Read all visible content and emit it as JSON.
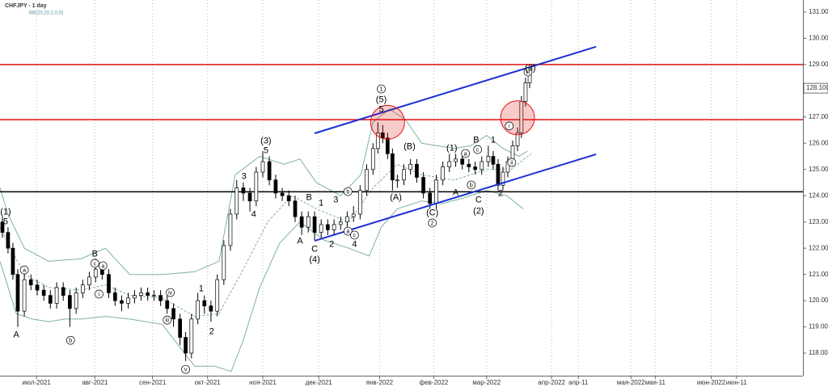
{
  "chart_data": {
    "type": "candlestick",
    "title": "CHFJPY - 1 day",
    "subtitle": "BB(20,20,2,0,0)",
    "xlim": [
      0,
      330
    ],
    "ylim": [
      117.14,
      131.46
    ],
    "grid": true,
    "xticks": [
      {
        "value": 15,
        "label": "июл-2021"
      },
      {
        "value": 39,
        "label": "авг-2021"
      },
      {
        "value": 62.7,
        "label": "сен-2021"
      },
      {
        "value": 85.3,
        "label": "окт-2021"
      },
      {
        "value": 108,
        "label": "ноя-2021"
      },
      {
        "value": 131,
        "label": "дек-2021"
      },
      {
        "value": 156,
        "label": "янв-2022"
      },
      {
        "value": 178.3,
        "label": "фев-2022"
      },
      {
        "value": 200,
        "label": "мар-2022"
      },
      {
        "value": 226.7,
        "label": "апр-2022"
      },
      {
        "value": 237.7,
        "label": "апр-11"
      },
      {
        "value": 259.3,
        "label": "мая-2022"
      },
      {
        "value": 269.3,
        "label": "мая-11"
      },
      {
        "value": 292.3,
        "label": "июн-2022"
      },
      {
        "value": 302.7,
        "label": "июн-11"
      }
    ],
    "yticks": [
      {
        "value": 118,
        "label": "118.000"
      },
      {
        "value": 119,
        "label": "119.000"
      },
      {
        "value": 120,
        "label": "120.000"
      },
      {
        "value": 121,
        "label": "121.000"
      },
      {
        "value": 122,
        "label": "122.000"
      },
      {
        "value": 123,
        "label": "123.000"
      },
      {
        "value": 124,
        "label": "124.000"
      },
      {
        "value": 125,
        "label": "125.000"
      },
      {
        "value": 126,
        "label": "126.000"
      },
      {
        "value": 127,
        "label": "127.000"
      },
      {
        "value": 128,
        "label": "128.000"
      },
      {
        "value": 129,
        "label": "129.000"
      },
      {
        "value": 130,
        "label": "130.000"
      },
      {
        "value": 131,
        "label": "131.000"
      }
    ],
    "current_price": {
      "value": 128.1,
      "label": "128.100"
    },
    "x": [
      1,
      3.3,
      5.3,
      7.3,
      10,
      12.7,
      15.3,
      18,
      20.7,
      23.3,
      26,
      28.7,
      31.3,
      34,
      36.7,
      39.3,
      42,
      44.7,
      47.3,
      50,
      52.7,
      55.3,
      58,
      60.7,
      63.3,
      66,
      68.7,
      71.3,
      74,
      76.3,
      78.7,
      81.3,
      84,
      86.7,
      89.3,
      92,
      94.7,
      97.3,
      100,
      102.7,
      105.3,
      108,
      110.7,
      113.3,
      116,
      118.7,
      121.3,
      124,
      126.7,
      129.3,
      132,
      134.7,
      137.3,
      140,
      142.7,
      145.3,
      148,
      150.7,
      153.3,
      155.3,
      157.3,
      159.3,
      161.3,
      163.3,
      166,
      168.7,
      171.3,
      174,
      176.7,
      179.3,
      182,
      184.7,
      187.3,
      190,
      192.7,
      195.3,
      198,
      200.7,
      202.7,
      204.7,
      206.7,
      208.7,
      210.7,
      212.7,
      214.3,
      216,
      217.7
    ],
    "open": [
      123.0,
      122.6,
      122.0,
      121.0,
      119.6,
      120.8,
      120.6,
      120.4,
      120.2,
      119.9,
      120.5,
      120.2,
      119.7,
      120.3,
      120.6,
      120.9,
      121.2,
      121.0,
      120.3,
      120.0,
      119.9,
      120.1,
      120.2,
      120.3,
      120.2,
      120.2,
      120.0,
      119.7,
      119.3,
      118.6,
      118.0,
      119.3,
      120.0,
      119.8,
      119.6,
      120.8,
      122.1,
      123.3,
      124.3,
      124.1,
      123.8,
      124.9,
      125.3,
      124.6,
      124.1,
      124.0,
      123.8,
      123.2,
      122.8,
      123.2,
      122.6,
      122.9,
      122.7,
      122.9,
      123.0,
      123.2,
      123.3,
      124.2,
      125.0,
      125.8,
      126.4,
      126.2,
      125.6,
      124.6,
      124.6,
      125.0,
      125.2,
      124.7,
      124.1,
      123.7,
      124.6,
      125.1,
      125.3,
      125.4,
      125.2,
      125.1,
      125.0,
      125.3,
      125.5,
      125.2,
      124.4,
      124.9,
      125.3,
      125.9,
      126.4,
      127.6,
      128.3
    ],
    "high": [
      123.2,
      122.8,
      122.2,
      121.2,
      121.0,
      121.0,
      120.8,
      120.6,
      120.4,
      120.7,
      120.7,
      120.4,
      120.5,
      120.8,
      121.1,
      121.6,
      121.4,
      121.2,
      120.5,
      120.2,
      120.3,
      120.4,
      120.5,
      120.5,
      120.4,
      120.4,
      120.2,
      119.9,
      119.5,
      118.8,
      119.5,
      120.3,
      120.2,
      120.0,
      121.0,
      122.3,
      123.5,
      124.6,
      124.5,
      124.3,
      125.1,
      125.7,
      125.5,
      124.8,
      124.3,
      124.2,
      124.0,
      123.4,
      123.4,
      123.4,
      123.1,
      123.1,
      123.1,
      123.2,
      123.4,
      123.6,
      124.4,
      125.2,
      126.0,
      126.8,
      126.7,
      126.4,
      125.8,
      124.8,
      125.2,
      125.4,
      125.4,
      124.9,
      124.3,
      124.8,
      125.3,
      125.6,
      125.6,
      125.6,
      125.4,
      125.3,
      125.5,
      125.9,
      125.7,
      125.4,
      125.1,
      125.5,
      126.1,
      126.6,
      127.8,
      128.5,
      128.9
    ],
    "low": [
      122.4,
      121.8,
      120.8,
      119.0,
      119.4,
      120.4,
      120.2,
      120.0,
      119.7,
      119.7,
      120.0,
      119.0,
      119.5,
      120.1,
      120.4,
      120.7,
      120.8,
      120.1,
      119.8,
      119.6,
      119.7,
      119.9,
      120.0,
      120.0,
      120.0,
      119.8,
      119.5,
      119.0,
      118.3,
      117.7,
      117.8,
      119.1,
      119.5,
      119.2,
      119.4,
      120.6,
      121.9,
      123.1,
      123.8,
      123.4,
      123.6,
      124.7,
      124.4,
      123.9,
      123.8,
      123.6,
      123.0,
      122.5,
      122.6,
      122.3,
      122.4,
      122.5,
      122.5,
      122.7,
      122.8,
      123.0,
      123.1,
      124.0,
      124.8,
      125.6,
      126.0,
      125.4,
      124.2,
      124.3,
      124.4,
      124.8,
      124.5,
      123.9,
      123.5,
      123.5,
      124.4,
      124.9,
      125.1,
      125.0,
      124.9,
      124.8,
      124.8,
      125.1,
      125.0,
      124.2,
      124.2,
      124.7,
      125.1,
      125.7,
      126.2,
      127.4,
      128.1
    ],
    "close": [
      122.6,
      122.0,
      121.0,
      119.6,
      120.8,
      120.6,
      120.4,
      120.2,
      119.9,
      120.5,
      120.2,
      119.7,
      120.3,
      120.6,
      120.9,
      121.2,
      121.0,
      120.3,
      120.0,
      119.9,
      120.1,
      120.2,
      120.3,
      120.2,
      120.2,
      120.0,
      119.7,
      119.3,
      118.6,
      118.0,
      119.3,
      120.0,
      119.8,
      119.6,
      120.8,
      122.1,
      123.3,
      124.3,
      124.1,
      123.8,
      124.9,
      125.3,
      124.6,
      124.1,
      124.0,
      123.8,
      123.2,
      122.8,
      123.2,
      122.6,
      122.9,
      122.7,
      122.9,
      123.0,
      123.2,
      123.3,
      124.2,
      125.0,
      125.8,
      126.4,
      126.2,
      125.6,
      124.6,
      124.6,
      125.0,
      125.2,
      124.7,
      124.1,
      123.7,
      124.6,
      125.1,
      125.3,
      125.4,
      125.2,
      125.1,
      125.0,
      125.3,
      125.5,
      125.2,
      124.4,
      124.9,
      125.3,
      125.9,
      126.4,
      127.6,
      128.3,
      128.7
    ],
    "bands": [
      {
        "color": "#7fb0a6",
        "x": [
          0,
          3.3,
          10,
          20,
          33.3,
          43.3,
          53.3,
          66.7,
          80,
          90,
          96.7,
          106.7,
          116.7,
          123.3,
          130,
          140,
          148.3,
          153.3,
          160,
          166.7,
          173.3,
          180,
          186.7,
          193.3,
          200,
          206.7,
          213.3,
          216.7
        ],
        "values": [
          124.3,
          123.3,
          122.0,
          121.5,
          121.6,
          122.0,
          121.0,
          121.0,
          121.1,
          121.5,
          124.8,
          125.5,
          125.2,
          125.4,
          124.5,
          124.0,
          124.8,
          126.8,
          127.3,
          126.9,
          126.0,
          125.9,
          125.8,
          125.9,
          126.3,
          125.8,
          125.5,
          125.7
        ]
      },
      {
        "color": "#7fb0a6",
        "dashed": true,
        "x": [
          0,
          10,
          20,
          33.3,
          43.3,
          53.3,
          66.7,
          80,
          90,
          100,
          110,
          120,
          130,
          143.3,
          153.3,
          163.3,
          173.3,
          186.7,
          200,
          210,
          218.3
        ],
        "values": [
          122.8,
          121.0,
          120.5,
          120.4,
          120.6,
          120.2,
          120.1,
          119.4,
          119.5,
          121.2,
          123.0,
          124.0,
          123.5,
          123.0,
          124.3,
          125.2,
          124.8,
          124.6,
          125.0,
          125.0,
          125.6
        ]
      },
      {
        "color": "#7fb0a6",
        "x": [
          0,
          6.7,
          13.3,
          20,
          26.7,
          33.3,
          43.3,
          53.3,
          66.7,
          73.3,
          80,
          88.3,
          95,
          100,
          106.7,
          115,
          123.3,
          133.3,
          143.3,
          151.7,
          156.7,
          163.3,
          173.3,
          181.7,
          190,
          200,
          208.3,
          215
        ],
        "values": [
          121.5,
          119.5,
          119.3,
          119.2,
          119.3,
          119.3,
          119.4,
          119.3,
          119.1,
          118.3,
          117.5,
          117.5,
          117.3,
          118.5,
          120.5,
          122.2,
          123.0,
          122.3,
          122.0,
          121.7,
          122.8,
          123.5,
          123.8,
          123.7,
          123.9,
          124.2,
          124.0,
          123.5
        ]
      }
    ],
    "hlines": [
      {
        "value": 129.0,
        "color": "#e01010"
      },
      {
        "value": 126.9,
        "color": "#e01010"
      },
      {
        "value": 124.15,
        "color": "#000000"
      }
    ],
    "channels": [
      {
        "color": "#1a2fd6",
        "x": [
          129.3,
          245
        ],
        "values": [
          126.38,
          129.68
        ]
      },
      {
        "color": "#1a2fd6",
        "x": [
          129.3,
          245
        ],
        "values": [
          122.28,
          125.58
        ]
      }
    ],
    "circles": [
      {
        "x": 159.3,
        "y": 126.8,
        "color": "#e01010"
      },
      {
        "x": 212.7,
        "y": 126.97,
        "color": "#e01010"
      }
    ],
    "annotations": [
      {
        "text": "(1)",
        "x": 2.3,
        "y": 123.39
      },
      {
        "text": "5",
        "x": 2.3,
        "y": 123.02
      },
      {
        "text": "A",
        "x": 6.7,
        "y": 118.71
      },
      {
        "text": "a",
        "x": 10,
        "y": 121.17,
        "circled": true
      },
      {
        "text": "b",
        "x": 29,
        "y": 118.49,
        "circled": true
      },
      {
        "text": "B",
        "x": 39,
        "y": 121.79
      },
      {
        "text": "c",
        "x": 39,
        "y": 121.42,
        "circled": true
      },
      {
        "text": "a",
        "x": 42.3,
        "y": 121.33,
        "circled": true
      },
      {
        "text": "i",
        "x": 40.7,
        "y": 120.25,
        "circled": true
      },
      {
        "text": "iv",
        "x": 70,
        "y": 120.31,
        "circled": true
      },
      {
        "text": "iii",
        "x": 68.7,
        "y": 119.26,
        "circled": true
      },
      {
        "text": "v",
        "x": 76.3,
        "y": 117.38,
        "circled": true
      },
      {
        "text": "1",
        "x": 82.7,
        "y": 120.46
      },
      {
        "text": "2",
        "x": 87,
        "y": 118.83
      },
      {
        "text": "3",
        "x": 100.3,
        "y": 124.75
      },
      {
        "text": "4",
        "x": 104.3,
        "y": 123.3
      },
      {
        "text": "(3)",
        "x": 109.3,
        "y": 126.1
      },
      {
        "text": "5",
        "x": 109.3,
        "y": 125.73
      },
      {
        "text": "B",
        "x": 127,
        "y": 123.95
      },
      {
        "text": "1",
        "x": 132,
        "y": 123.73
      },
      {
        "text": "3",
        "x": 138,
        "y": 123.85
      },
      {
        "text": "b",
        "x": 143,
        "y": 124.16,
        "circled": true
      },
      {
        "text": "a",
        "x": 143,
        "y": 122.65,
        "circled": true
      },
      {
        "text": "c",
        "x": 145.7,
        "y": 122.5,
        "circled": true
      },
      {
        "text": "4",
        "x": 145.7,
        "y": 122.16
      },
      {
        "text": "2",
        "x": 136.3,
        "y": 122.16
      },
      {
        "text": "A",
        "x": 123.3,
        "y": 122.28
      },
      {
        "text": "C",
        "x": 129.3,
        "y": 121.97
      },
      {
        "text": "(4)",
        "x": 129.3,
        "y": 121.57
      },
      {
        "text": "1",
        "x": 156.7,
        "y": 128.07,
        "circled": true
      },
      {
        "text": "(5)",
        "x": 156.7,
        "y": 127.67
      },
      {
        "text": "5",
        "x": 156.7,
        "y": 127.3
      },
      {
        "text": "(A)",
        "x": 162.7,
        "y": 123.95
      },
      {
        "text": "(B)",
        "x": 168.3,
        "y": 125.89
      },
      {
        "text": "(C)",
        "x": 177.7,
        "y": 123.36
      },
      {
        "text": "2",
        "x": 177.7,
        "y": 122.96,
        "circled": true
      },
      {
        "text": "(1)",
        "x": 185.7,
        "y": 125.82
      },
      {
        "text": "a",
        "x": 191.3,
        "y": 125.61,
        "circled": true
      },
      {
        "text": "c",
        "x": 196.3,
        "y": 125.76,
        "circled": true
      },
      {
        "text": "B",
        "x": 195.7,
        "y": 126.13
      },
      {
        "text": "b",
        "x": 193.7,
        "y": 124.41,
        "circled": true
      },
      {
        "text": "A",
        "x": 187.3,
        "y": 124.13
      },
      {
        "text": "C",
        "x": 196.7,
        "y": 123.85
      },
      {
        "text": "(2)",
        "x": 196.7,
        "y": 123.42
      },
      {
        "text": "1",
        "x": 202.7,
        "y": 126.13
      },
      {
        "text": "2",
        "x": 205.7,
        "y": 124.1
      },
      {
        "text": "i",
        "x": 209.3,
        "y": 126.66,
        "circled": true
      },
      {
        "text": "iii",
        "x": 217,
        "y": 128.72,
        "circled": true
      },
      {
        "text": "(3)",
        "x": 218,
        "y": 128.87
      },
      {
        "text": "ii",
        "x": 210.3,
        "y": 125.27,
        "circled": true
      }
    ]
  }
}
